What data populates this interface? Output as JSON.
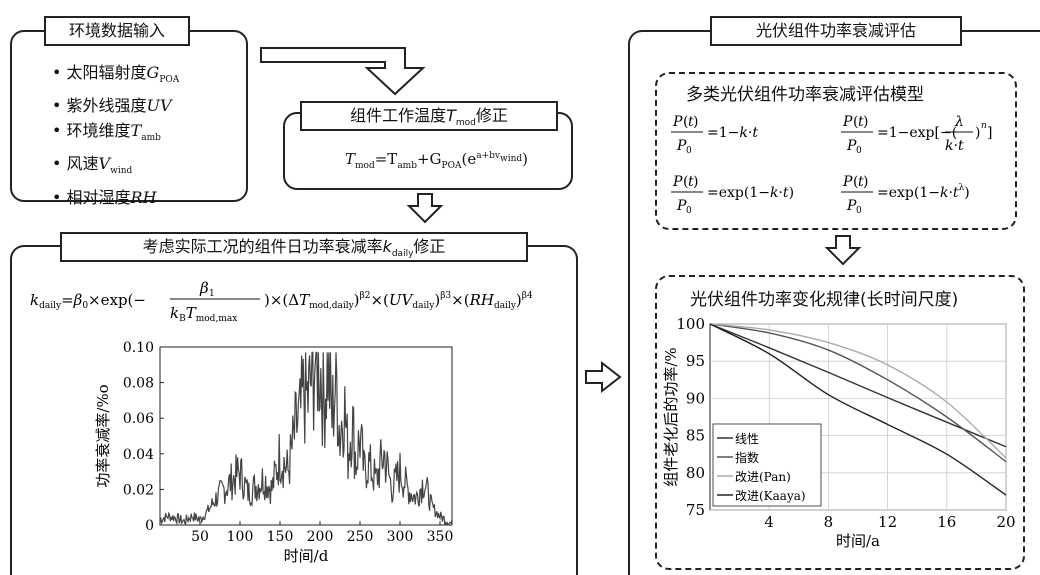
{
  "env_box": {
    "title": "环境数据输入",
    "items": [
      "太阳辐射度",
      "紫外线强度",
      "环境维度",
      "风速",
      "相对湿度"
    ],
    "symbols": [
      "G",
      "UV",
      "T",
      "V",
      "RH"
    ],
    "subs": [
      "POA",
      "",
      "amb",
      "wind",
      ""
    ]
  },
  "temp_box": {
    "title_pre": "组件工作温度",
    "title_sym": "T",
    "title_sub": "mod",
    "title_post": "修正",
    "formula_lhs": "T",
    "formula_lhs_sub": "mod",
    "formula_rhs": "=T",
    "formula_rhs_sub": "amb",
    "formula_g": "+G",
    "formula_g_sub": "POA",
    "formula_exp": "(e",
    "formula_exp_sup": "a+bv",
    "formula_exp_sub": "wind",
    "formula_close": ")"
  },
  "daily_box": {
    "title_pre": "考虑实际工况的组件日功率衰减率",
    "title_sym": "k",
    "title_sub": "daily",
    "title_post": "修正",
    "formula": "k_daily=β0×exp(−β1/(kB·Tmod,max))×(ΔTmod,daily)^β2×(UVdaily)^β3×(RHdaily)^β4"
  },
  "eval_box": {
    "title": "光伏组件功率衰减评估",
    "models_title": "多类光伏组件功率衰减评估模型",
    "law_title": "光伏组件功率变化规律(长时间尺度)"
  },
  "chart_data": [
    {
      "type": "line",
      "title": "",
      "xlabel": "时间/d",
      "ylabel": "功率衰减率/%o",
      "xlim": [
        0,
        365
      ],
      "ylim": [
        0,
        0.1
      ],
      "xticks": [
        50,
        100,
        150,
        200,
        250,
        300,
        350
      ],
      "yticks": [
        "0",
        "0.02",
        "0.04",
        "0.06",
        "0.08",
        "0.10"
      ],
      "series": [
        {
          "x": [
            0,
            10,
            20,
            30,
            40,
            50,
            60,
            70,
            80,
            90,
            100,
            110,
            120,
            130,
            140,
            150,
            160,
            170,
            175,
            180,
            185,
            190,
            195,
            200,
            205,
            210,
            215,
            220,
            225,
            230,
            235,
            240,
            245,
            250,
            255,
            260,
            270,
            280,
            290,
            300,
            310,
            320,
            330,
            340,
            350,
            360
          ],
          "y": [
            0.003,
            0.005,
            0.004,
            0.002,
            0.005,
            0.003,
            0.008,
            0.015,
            0.02,
            0.025,
            0.03,
            0.018,
            0.022,
            0.026,
            0.02,
            0.04,
            0.03,
            0.055,
            0.06,
            0.075,
            0.07,
            0.085,
            0.095,
            0.09,
            0.07,
            0.092,
            0.06,
            0.085,
            0.05,
            0.07,
            0.04,
            0.06,
            0.035,
            0.05,
            0.03,
            0.035,
            0.025,
            0.04,
            0.02,
            0.03,
            0.02,
            0.015,
            0.025,
            0.01,
            0.005,
            0.002
          ]
        }
      ]
    },
    {
      "type": "line",
      "title": "",
      "xlabel": "时间/a",
      "ylabel": "组件老化后的功率/%",
      "xlim": [
        0,
        20
      ],
      "ylim": [
        75,
        100
      ],
      "xticks": [
        4,
        8,
        12,
        16,
        20
      ],
      "yticks": [
        75,
        80,
        85,
        90,
        95,
        100
      ],
      "legend_position": "bottom-left",
      "series": [
        {
          "name": "线性",
          "color": "#333333",
          "x": [
            0,
            4,
            8,
            12,
            16,
            20
          ],
          "y": [
            100,
            96.8,
            93.5,
            90.1,
            86.8,
            83.5
          ]
        },
        {
          "name": "指数",
          "color": "#555555",
          "x": [
            0,
            4,
            8,
            12,
            16,
            20
          ],
          "y": [
            100,
            98.8,
            96.5,
            92.5,
            87.5,
            81.5
          ]
        },
        {
          "name": "改进(Pan)",
          "color": "#aaaaaa",
          "x": [
            0,
            4,
            8,
            12,
            16,
            20
          ],
          "y": [
            100,
            99.2,
            97.5,
            94.5,
            89.5,
            82
          ]
        },
        {
          "name": "改进(Kaaya)",
          "color": "#222222",
          "x": [
            0,
            4,
            8,
            12,
            16,
            20
          ],
          "y": [
            100,
            96,
            90.5,
            86.5,
            82.5,
            77
          ]
        }
      ]
    }
  ]
}
